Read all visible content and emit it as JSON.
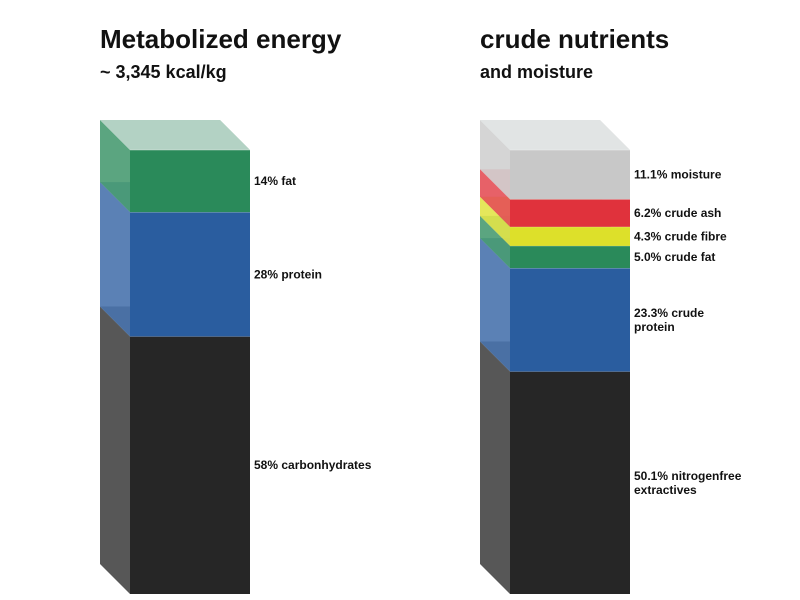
{
  "chart_data": [
    {
      "type": "bar",
      "style": "stacked-3d-column",
      "title": "Metabolized energy",
      "subtitle": "~ 3,345 kcal/kg",
      "segments": [
        {
          "key": "carbohydrates",
          "value": 58,
          "label": "58% carbonhydrates",
          "color": "#262626"
        },
        {
          "key": "protein",
          "value": 28,
          "label": "28% protein",
          "color": "#2a5d9f"
        },
        {
          "key": "fat",
          "value": 14,
          "label": "14% fat",
          "color": "#2a8a5a"
        }
      ]
    },
    {
      "type": "bar",
      "style": "stacked-3d-column",
      "title": "crude nutrients",
      "subtitle": "and moisture",
      "segments": [
        {
          "key": "nitrogenfree-extractives",
          "value": 50.1,
          "label": "50.1% nitrogenfree extractives",
          "color": "#262626"
        },
        {
          "key": "crude-protein",
          "value": 23.3,
          "label": "23.3% crude protein",
          "color": "#2a5d9f"
        },
        {
          "key": "crude-fat",
          "value": 5.0,
          "label": "5.0% crude fat",
          "color": "#2a8a5a"
        },
        {
          "key": "crude-fibre",
          "value": 4.3,
          "label": "4.3% crude fibre",
          "color": "#dde02a"
        },
        {
          "key": "crude-ash",
          "value": 6.2,
          "label": "6.2% crude ash",
          "color": "#e0323c"
        },
        {
          "key": "moisture",
          "value": 11.1,
          "label": "11.1% moisture",
          "color": "#c8c8c8"
        }
      ]
    }
  ]
}
